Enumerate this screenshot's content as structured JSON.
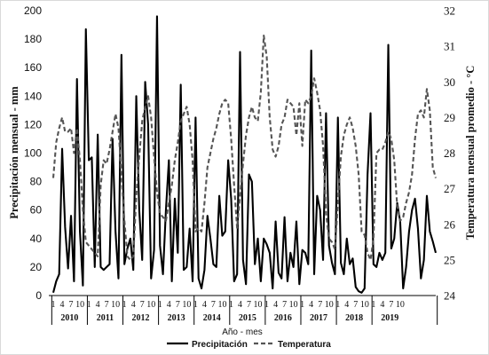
{
  "chart_data": {
    "type": "line",
    "xlabel": "Año - mes",
    "ylabel_left": "Precipitación mensual  - mm",
    "ylabel_right": "Temperatura mensual promedio - °C",
    "ylim_left": [
      0,
      200
    ],
    "yticks_left": [
      0,
      20,
      40,
      60,
      80,
      100,
      120,
      140,
      160,
      180,
      200
    ],
    "ylim_right": [
      24,
      32
    ],
    "yticks_right": [
      24,
      25,
      26,
      27,
      28,
      29,
      30,
      31,
      32
    ],
    "years": [
      "2010",
      "2011",
      "2012",
      "2013",
      "2014",
      "2015",
      "2016",
      "2017",
      "2018",
      "2019"
    ],
    "month_ticks": [
      "1",
      "4",
      "7",
      "10"
    ],
    "grid": false,
    "legend_position": "bottom",
    "series": [
      {
        "name": "Precipitación",
        "axis": "left",
        "style": "solid",
        "color": "#000000",
        "values": [
          2,
          10,
          15,
          103,
          48,
          19,
          56,
          10,
          152,
          45,
          7,
          187,
          95,
          97,
          20,
          113,
          20,
          18,
          20,
          22,
          110,
          45,
          12,
          169,
          22,
          33,
          40,
          18,
          140,
          60,
          25,
          150,
          120,
          12,
          32,
          196,
          35,
          15,
          60,
          95,
          10,
          68,
          30,
          148,
          18,
          20,
          47,
          10,
          125,
          12,
          5,
          18,
          56,
          40,
          22,
          20,
          70,
          42,
          45,
          95,
          68,
          10,
          15,
          171,
          25,
          8,
          85,
          80,
          22,
          40,
          10,
          40,
          36,
          30,
          5,
          52,
          16,
          12,
          55,
          10,
          30,
          20,
          52,
          8,
          32,
          30,
          22,
          172,
          15,
          70,
          60,
          25,
          128,
          35,
          23,
          15,
          125,
          23,
          15,
          40,
          22,
          26,
          6,
          3,
          2,
          5,
          85,
          128,
          22,
          20,
          30,
          25,
          30,
          176,
          33,
          40,
          65,
          52,
          5,
          20,
          45,
          60,
          68,
          47,
          12,
          25,
          70,
          45,
          38,
          30
        ]
      },
      {
        "name": "Temperatura",
        "axis": "right",
        "style": "dashed",
        "color": "#555555",
        "values": [
          27.3,
          28.3,
          28.7,
          29.0,
          28.6,
          28.6,
          28.7,
          28.0,
          28.7,
          27.8,
          26.4,
          25.5,
          25.4,
          25.3,
          25.2,
          25.1,
          27.1,
          27.8,
          27.7,
          28.1,
          28.6,
          29.1,
          28.7,
          27.4,
          26.1,
          25.1,
          25.0,
          25.1,
          26.8,
          27.9,
          28.9,
          29.3,
          29.6,
          29.0,
          27.9,
          26.9,
          26.3,
          26.2,
          26.1,
          26.6,
          27.1,
          27.8,
          28.3,
          28.9,
          29.1,
          29.3,
          28.8,
          27.8,
          25.8,
          25.9,
          25.8,
          26.6,
          27.6,
          28.0,
          28.4,
          28.7,
          29.1,
          29.4,
          29.5,
          29.4,
          28.4,
          27.1,
          25.9,
          26.8,
          27.7,
          28.5,
          29.0,
          29.3,
          29.0,
          28.9,
          29.7,
          31.3,
          30.7,
          29.0,
          28.1,
          27.9,
          28.2,
          28.8,
          29.0,
          29.5,
          29.4,
          29.3,
          28.5,
          29.4,
          28.2,
          29.5,
          29.4,
          29.6,
          30.1,
          29.7,
          29.2,
          28.2,
          26.3,
          25.6,
          25.5,
          25.3,
          26.6,
          27.9,
          28.5,
          28.8,
          29.0,
          28.7,
          28.2,
          27.4,
          25.8,
          25.7,
          25.2,
          25.0,
          25.6,
          28.0,
          28.1,
          28.1,
          28.3,
          28.6,
          28.4,
          27.8,
          26.5,
          26.1,
          26.2,
          26.6,
          26.9,
          27.4,
          28.4,
          29.1,
          29.2,
          29.0,
          29.8,
          29.2,
          27.6,
          27.3
        ]
      }
    ]
  }
}
